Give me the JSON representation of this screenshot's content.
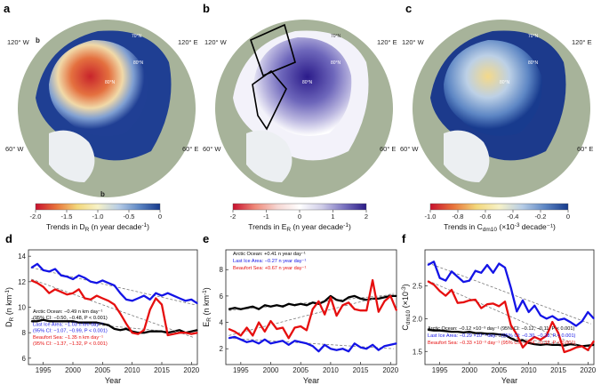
{
  "maps": {
    "a": {
      "label": "a",
      "lon_labels": [
        "120° W",
        "120° E",
        "60° W",
        "60° E"
      ],
      "lat_labels": [
        "70°N",
        "80°N",
        "80°N"
      ],
      "inset_letters": [
        "b",
        "b"
      ],
      "colorbar": {
        "ticks": [
          "-2.0",
          "-1.5",
          "-1.0",
          "-0.5",
          "0"
        ],
        "label": "Trends in D",
        "label_sub": "R",
        "label_rest": " (n year decade",
        "label_sup": "-1",
        "label_end": ")",
        "colors": [
          "#c8102e",
          "#e8743b",
          "#f3d77a",
          "#f7f2c8",
          "#b7cde6",
          "#5d86c4",
          "#163a8c"
        ]
      }
    },
    "b": {
      "label": "b",
      "lon_labels": [
        "120° W",
        "120° E",
        "60° W",
        "60° E"
      ],
      "lat_labels": [
        "70°N",
        "80°N",
        "80°N"
      ],
      "colorbar": {
        "ticks": [
          "-2",
          "-1",
          "0",
          "1",
          "2"
        ],
        "label": "Trends in E",
        "label_sub": "R",
        "label_rest": " (n year decade",
        "label_sup": "-1",
        "label_end": ")",
        "colors": [
          "#c8102e",
          "#ef8a7a",
          "#f6d6d2",
          "#ffffff",
          "#cfcde8",
          "#7a73c0",
          "#2a1a86"
        ]
      }
    },
    "c": {
      "label": "c",
      "lon_labels": [
        "120° W",
        "120° E",
        "60° W",
        "60° E"
      ],
      "lat_labels": [
        "70°N",
        "80°N",
        "80°N"
      ],
      "colorbar": {
        "ticks": [
          "-1.0",
          "-0.8",
          "-0.6",
          "-0.4",
          "-0.2",
          "0"
        ],
        "label": "Trends in C",
        "label_sub": "dm10",
        "label_rest": " (×10",
        "label_sup": "-3",
        "label_end": " decade⁻¹)",
        "colors": [
          "#c8102e",
          "#e8743b",
          "#f3d77a",
          "#f7f2c8",
          "#b7cde6",
          "#5d86c4",
          "#163a8c"
        ]
      }
    }
  },
  "colors": {
    "arctic": "#000000",
    "lastice": "#1414e6",
    "beaufort": "#e60f0f",
    "fit": "#7a7a7a"
  },
  "chart_data": [
    {
      "id": "d",
      "type": "line",
      "panel_label": "d",
      "xlabel": "Year",
      "ylabel": "D",
      "ylabel_sub": "R",
      "ylabel_rest": " (n km",
      "ylabel_sup": "-1",
      "ylabel_end": ")",
      "xlim": [
        1992.5,
        2021
      ],
      "ylim": [
        5.5,
        14.5
      ],
      "yticks": [
        6,
        8,
        10,
        12,
        14
      ],
      "xticks": [
        1995,
        2000,
        2005,
        2010,
        2015,
        2020
      ],
      "x": [
        1993,
        1994,
        1995,
        1996,
        1997,
        1998,
        1999,
        2000,
        2001,
        2002,
        2003,
        2004,
        2005,
        2006,
        2007,
        2008,
        2009,
        2010,
        2011,
        2012,
        2013,
        2014,
        2015,
        2016,
        2017,
        2018,
        2019,
        2020,
        2021
      ],
      "series": [
        {
          "name": "Arctic Ocean",
          "color": "arctic",
          "values": [
            8.9,
            8.9,
            9.0,
            8.9,
            8.9,
            8.9,
            8.9,
            8.9,
            8.8,
            8.8,
            8.8,
            8.8,
            8.7,
            8.6,
            8.3,
            8.2,
            8.3,
            8.1,
            8.0,
            8.0,
            8.1,
            8.1,
            8.1,
            8.0,
            8.1,
            8.2,
            8.0,
            8.1,
            8.2
          ],
          "fit": [
            9.1,
            7.9
          ]
        },
        {
          "name": "Last Ice Area",
          "color": "lastice",
          "values": [
            13.1,
            13.4,
            12.9,
            12.8,
            13.0,
            12.5,
            12.4,
            12.2,
            12.5,
            12.3,
            12.0,
            11.9,
            12.1,
            11.9,
            11.7,
            11.1,
            10.6,
            10.5,
            10.7,
            10.9,
            10.6,
            11.1,
            10.9,
            11.1,
            10.9,
            10.7,
            10.5,
            10.6,
            10.3
          ],
          "fit": [
            13.1,
            10.2
          ]
        },
        {
          "name": "Beaufort Sea",
          "color": "beaufort",
          "values": [
            12.1,
            11.9,
            11.6,
            11.1,
            11.4,
            11.2,
            11.0,
            11.1,
            11.4,
            10.7,
            10.6,
            10.9,
            10.7,
            10.5,
            10.2,
            9.5,
            8.7,
            8.0,
            7.9,
            8.2,
            9.8,
            10.7,
            10.2,
            7.8,
            7.9,
            8.0,
            8.0,
            7.9,
            8.0
          ],
          "fit": [
            12.2,
            7.6
          ]
        }
      ],
      "annotations": [
        {
          "color": "arctic",
          "text": "Arctic Ocean: −0.49 n km day⁻¹"
        },
        {
          "color": "arctic",
          "text": "(95% CI: −0.50, −0.48, P < 0.001)"
        },
        {
          "color": "lastice",
          "text": "Last Ice Area: −1.03 n km day⁻¹"
        },
        {
          "color": "lastice",
          "text": "(95% CI: −1.07, −0.99, P < 0.001)"
        },
        {
          "color": "beaufort",
          "text": "Beaufort Sea: −1.35 n km day⁻¹"
        },
        {
          "color": "beaufort",
          "text": "(95% CI: −1.37, −1.32, P < 0.001)"
        }
      ]
    },
    {
      "id": "e",
      "type": "line",
      "panel_label": "e",
      "xlabel": "Year",
      "ylabel": "E",
      "ylabel_sub": "R",
      "ylabel_rest": " (n km",
      "ylabel_sup": "-1",
      "ylabel_end": ")",
      "xlim": [
        1992.5,
        2021
      ],
      "ylim": [
        0.8,
        9.5
      ],
      "yticks": [
        2,
        4,
        6,
        8
      ],
      "xticks": [
        1995,
        2000,
        2005,
        2010,
        2015,
        2020
      ],
      "x": [
        1993,
        1994,
        1995,
        1996,
        1997,
        1998,
        1999,
        2000,
        2001,
        2002,
        2003,
        2004,
        2005,
        2006,
        2007,
        2008,
        2009,
        2010,
        2011,
        2012,
        2013,
        2014,
        2015,
        2016,
        2017,
        2018,
        2019,
        2020,
        2021
      ],
      "series": [
        {
          "name": "Arctic Ocean",
          "color": "arctic",
          "values": [
            5.0,
            5.1,
            5.0,
            5.1,
            5.2,
            5.0,
            5.3,
            5.2,
            5.3,
            5.2,
            5.4,
            5.3,
            5.4,
            5.3,
            5.5,
            5.4,
            5.6,
            6.0,
            5.7,
            5.6,
            5.9,
            6.0,
            5.8,
            5.7,
            5.8,
            5.8,
            5.9,
            6.0,
            6.0
          ],
          "fit": [
            4.9,
            6.1
          ]
        },
        {
          "name": "Last Ice Area",
          "color": "lastice",
          "values": [
            2.8,
            2.9,
            2.7,
            2.5,
            2.6,
            2.4,
            2.7,
            2.4,
            2.5,
            2.6,
            2.3,
            2.6,
            2.5,
            2.4,
            2.2,
            1.8,
            2.3,
            2.0,
            1.9,
            2.0,
            1.8,
            2.4,
            2.1,
            2.0,
            2.3,
            1.9,
            2.2,
            2.3,
            2.4
          ],
          "fit": [
            2.8,
            2.0
          ]
        },
        {
          "name": "Beaufort Sea",
          "color": "beaufort",
          "values": [
            3.5,
            3.3,
            3.0,
            3.6,
            3.0,
            4.0,
            3.3,
            4.1,
            3.5,
            3.6,
            2.8,
            3.6,
            3.7,
            3.4,
            5.0,
            5.6,
            4.6,
            5.9,
            4.5,
            5.3,
            5.5,
            5.0,
            4.9,
            4.9,
            7.2,
            4.8,
            5.6,
            6.0,
            4.9
          ],
          "fit": [
            3.0,
            6.2
          ]
        }
      ],
      "annotations": [
        {
          "color": "arctic",
          "text": "Arctic Ocean: +0.41 n year day⁻¹"
        },
        {
          "color": "lastice",
          "text": "Last Ice Area: −0.27 n year day⁻¹"
        },
        {
          "color": "beaufort",
          "text": "Beaufort Sea: +0.67 n year day⁻¹"
        }
      ]
    },
    {
      "id": "f",
      "type": "line",
      "panel_label": "f",
      "xlabel": "Year",
      "ylabel": "C",
      "ylabel_sub": "dm10",
      "ylabel_rest": " (×10",
      "ylabel_sup": "-3",
      "ylabel_end": ")",
      "xlim": [
        1992.5,
        2021
      ],
      "ylim": [
        1.3,
        3.05
      ],
      "yticks": [
        1.5,
        2.0,
        2.5
      ],
      "xticks": [
        1995,
        2000,
        2005,
        2010,
        2015,
        2020
      ],
      "x": [
        1993,
        1994,
        1995,
        1996,
        1997,
        1998,
        1999,
        2000,
        2001,
        2002,
        2003,
        2004,
        2005,
        2006,
        2007,
        2008,
        2009,
        2010,
        2011,
        2012,
        2013,
        2014,
        2015,
        2016,
        2017,
        2018,
        2019,
        2020,
        2021
      ],
      "series": [
        {
          "name": "Arctic Ocean",
          "color": "arctic",
          "values": [
            1.83,
            1.82,
            1.82,
            1.81,
            1.8,
            1.8,
            1.79,
            1.8,
            1.78,
            1.78,
            1.77,
            1.77,
            1.76,
            1.75,
            1.7,
            1.66,
            1.67,
            1.63,
            1.61,
            1.6,
            1.61,
            1.6,
            1.6,
            1.59,
            1.61,
            1.6,
            1.58,
            1.59,
            1.6
          ],
          "fit": [
            1.85,
            1.57
          ]
        },
        {
          "name": "Last Ice Area",
          "color": "lastice",
          "values": [
            2.82,
            2.87,
            2.62,
            2.58,
            2.72,
            2.64,
            2.56,
            2.58,
            2.73,
            2.7,
            2.82,
            2.7,
            2.84,
            2.78,
            2.47,
            2.11,
            2.28,
            2.1,
            2.2,
            2.05,
            2.0,
            2.04,
            1.98,
            2.0,
            1.95,
            1.89,
            1.96,
            2.1,
            2.0
          ],
          "fit": [
            2.85,
            1.92
          ]
        },
        {
          "name": "Beaufort Sea",
          "color": "beaufort",
          "values": [
            2.57,
            2.52,
            2.42,
            2.35,
            2.44,
            2.24,
            2.25,
            2.28,
            2.29,
            2.16,
            2.22,
            2.23,
            2.19,
            2.26,
            1.9,
            1.76,
            1.56,
            1.66,
            1.72,
            1.68,
            1.74,
            1.95,
            1.78,
            1.49,
            1.52,
            1.56,
            1.58,
            1.52,
            1.66
          ],
          "fit": [
            2.58,
            1.5
          ]
        }
      ],
      "annotations": [
        {
          "color": "arctic",
          "text": "Arctic Ocean: −0.12 ×10⁻³ day⁻¹ (95% CI: −0.12, −0.11, P < 0.001)"
        },
        {
          "color": "lastice",
          "text": "Last Ice Area: −0.29 ×10⁻³ day⁻¹ (95% CI: −0.30, −0.28, P < 0.001)"
        },
        {
          "color": "beaufort",
          "text": "Beaufort Sea: −0.33 ×10⁻³ day⁻¹ (95% CI: −0.34, −0.32, P < 0.001)"
        }
      ]
    }
  ]
}
